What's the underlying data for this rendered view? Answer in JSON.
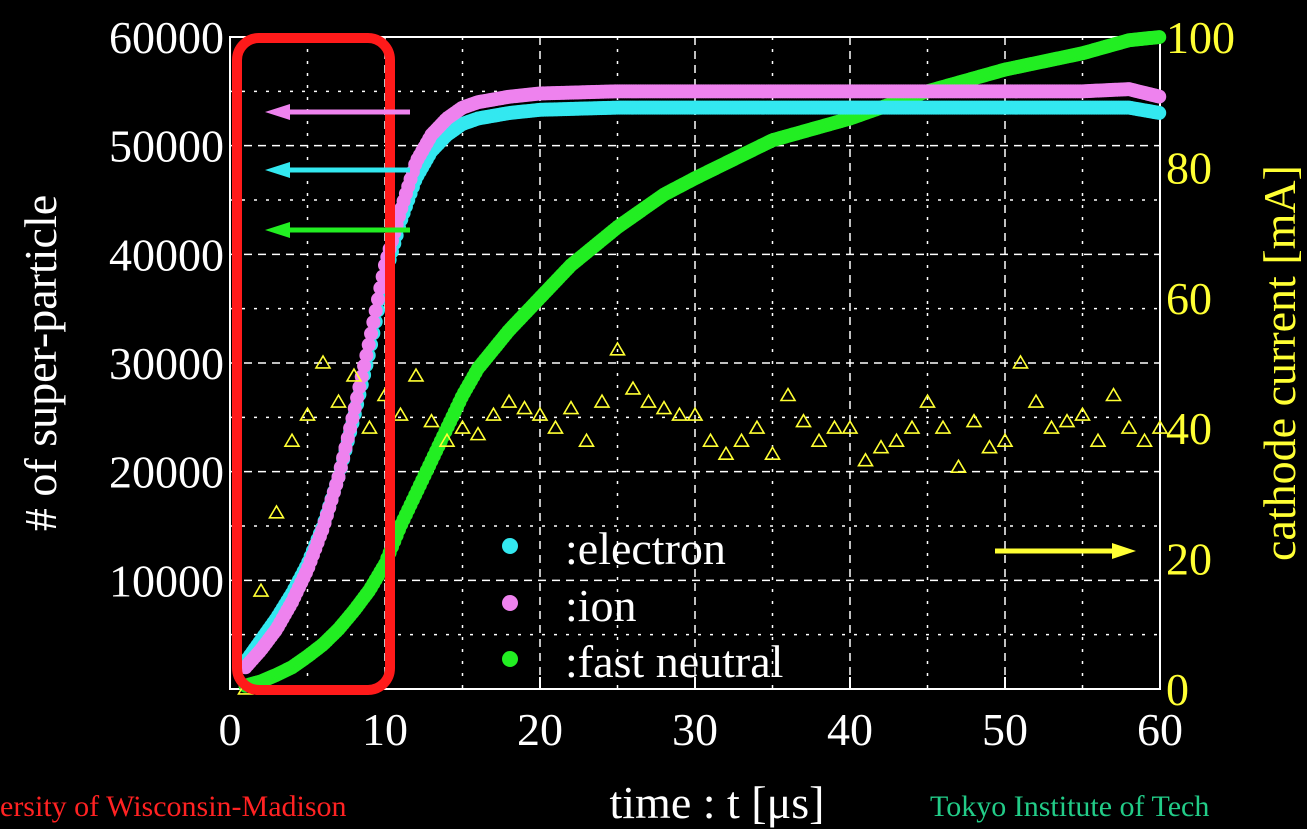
{
  "chart_data": {
    "type": "scatter",
    "xlabel": "time : t [μs]",
    "ylabel_left": "# of super-particle",
    "ylabel_right": "cathode current [mA]",
    "xlim": [
      0,
      60
    ],
    "ylim_left": [
      0,
      60000
    ],
    "ylim_right": [
      0,
      100
    ],
    "x_ticks": [
      "0",
      "10",
      "20",
      "30",
      "40",
      "50",
      "60"
    ],
    "y_left_ticks": [
      "10000",
      "20000",
      "30000",
      "40000",
      "50000",
      "60000"
    ],
    "y_right_ticks": [
      "0",
      "20",
      "40",
      "60",
      "80",
      "100"
    ],
    "grid": true,
    "legend_position": "bottom-center",
    "series": [
      {
        "name": ":electron",
        "axis": "left",
        "color": "#33e8f0",
        "marker": "circle",
        "x": [
          1,
          2,
          3,
          4,
          5,
          6,
          7,
          8,
          9,
          10,
          11,
          12,
          13,
          14,
          15,
          16,
          18,
          20,
          25,
          30,
          35,
          40,
          45,
          50,
          55,
          58,
          60
        ],
        "y": [
          2500,
          4500,
          6500,
          8800,
          11500,
          15000,
          19500,
          25000,
          31000,
          38000,
          43000,
          47000,
          49500,
          51000,
          52000,
          52500,
          53000,
          53300,
          53500,
          53500,
          53500,
          53500,
          53500,
          53500,
          53500,
          53500,
          53000
        ]
      },
      {
        "name": ":ion",
        "axis": "left",
        "color": "#ee82ee",
        "marker": "circle",
        "x": [
          1,
          2,
          3,
          4,
          5,
          6,
          7,
          8,
          9,
          10,
          11,
          12,
          13,
          14,
          15,
          16,
          18,
          20,
          25,
          30,
          35,
          40,
          45,
          50,
          55,
          58,
          60
        ],
        "y": [
          2000,
          3600,
          5500,
          8000,
          11000,
          14800,
          19500,
          25500,
          32000,
          39000,
          44000,
          48500,
          51000,
          52500,
          53500,
          54000,
          54500,
          54800,
          55000,
          55000,
          55000,
          55000,
          55000,
          55000,
          55000,
          55200,
          54500
        ]
      },
      {
        "name": ":fast neutral",
        "axis": "left",
        "color": "#22ee22",
        "marker": "circle",
        "x": [
          1,
          2,
          3,
          4,
          5,
          6,
          7,
          8,
          9,
          10,
          11,
          12,
          13,
          14,
          15,
          16,
          18,
          20,
          22,
          25,
          28,
          30,
          35,
          40,
          45,
          50,
          55,
          58,
          60
        ],
        "y": [
          300,
          700,
          1300,
          2000,
          3000,
          4100,
          5500,
          7200,
          9100,
          11500,
          15000,
          18000,
          21000,
          24000,
          27000,
          29500,
          33000,
          36000,
          39000,
          42500,
          45500,
          47000,
          50500,
          52500,
          55000,
          57000,
          58500,
          59700,
          60000
        ]
      },
      {
        "name": "cathode current",
        "axis": "right",
        "color": "#ffff33",
        "marker": "triangle-open",
        "x": [
          1,
          2,
          3,
          4,
          5,
          6,
          7,
          8,
          9,
          10,
          11,
          12,
          13,
          14,
          15,
          16,
          17,
          18,
          19,
          20,
          21,
          22,
          23,
          24,
          25,
          26,
          27,
          28,
          29,
          30,
          31,
          32,
          33,
          34,
          35,
          36,
          37,
          38,
          39,
          40,
          41,
          42,
          43,
          44,
          45,
          46,
          47,
          48,
          49,
          50,
          51,
          52,
          53,
          54,
          55,
          56,
          57,
          58,
          59,
          60
        ],
        "y": [
          0,
          15,
          27,
          38,
          42,
          50,
          44,
          48,
          40,
          45,
          42,
          48,
          41,
          38,
          40,
          39,
          42,
          44,
          43,
          42,
          40,
          43,
          38,
          44,
          52,
          46,
          44,
          43,
          42,
          42,
          38,
          36,
          38,
          40,
          36,
          45,
          41,
          38,
          40,
          40,
          35,
          37,
          38,
          40,
          44,
          40,
          34,
          41,
          37,
          38,
          50,
          44,
          40,
          41,
          42,
          38,
          45,
          40,
          38,
          40
        ]
      }
    ]
  },
  "footer": {
    "left": "ersity of Wisconsin-Madison",
    "right": "Tokyo Institute of Tech"
  }
}
